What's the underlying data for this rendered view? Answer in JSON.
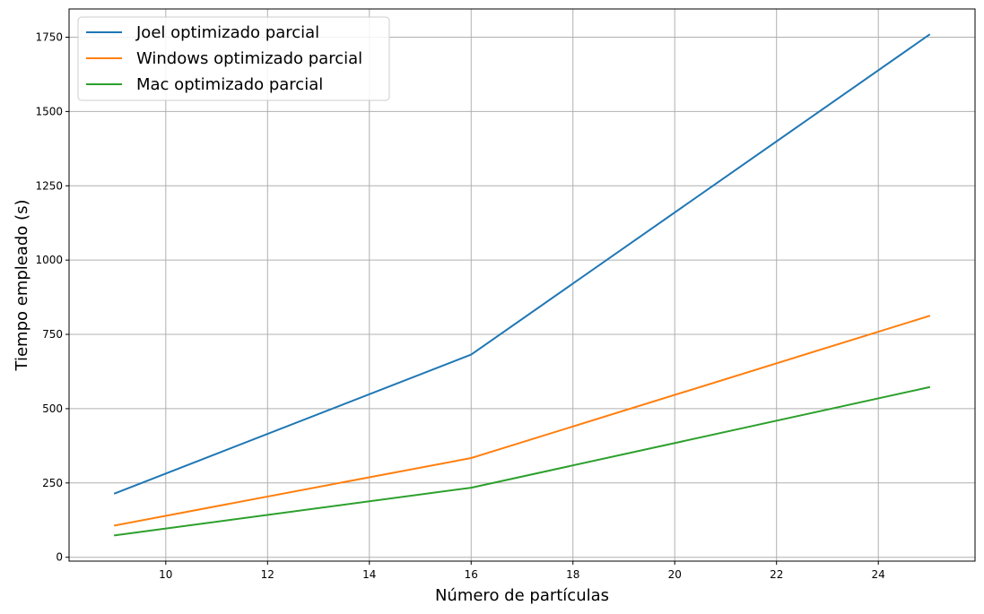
{
  "chart_data": {
    "type": "line",
    "xlabel": "Número de partículas",
    "ylabel": "Tiempo empleado (s)",
    "x": [
      9,
      16,
      25
    ],
    "series": [
      {
        "name": "Joel optimizado parcial",
        "color": "#1f77b4",
        "values": [
          215,
          682,
          1758
        ]
      },
      {
        "name": "Windows optimizado parcial",
        "color": "#ff7f0e",
        "values": [
          107,
          334,
          812
        ]
      },
      {
        "name": "Mac optimizado parcial",
        "color": "#2ca02c",
        "values": [
          74,
          234,
          572
        ]
      }
    ],
    "xlim": [
      8.1,
      25.9
    ],
    "ylim": [
      -13,
      1845
    ],
    "xticks": [
      10,
      12,
      14,
      16,
      18,
      20,
      22,
      24
    ],
    "xtick_labels": [
      "10",
      "12",
      "14",
      "16",
      "18",
      "20",
      "22",
      "24"
    ],
    "yticks": [
      0,
      250,
      500,
      750,
      1000,
      1250,
      1500,
      1750
    ],
    "ytick_labels": [
      "0",
      "250",
      "500",
      "750",
      "1000",
      "1250",
      "1500",
      "1750"
    ],
    "grid": true,
    "legend_position": "top-left"
  }
}
